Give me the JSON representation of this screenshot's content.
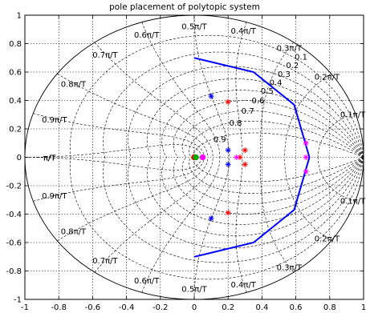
{
  "chart_data": {
    "type": "scatter",
    "title": "pole placement of polytopic system",
    "xlabel": "",
    "ylabel": "",
    "xlim": [
      -1,
      1
    ],
    "ylim": [
      -1,
      1
    ],
    "xticks": [
      "-1",
      "-0.8",
      "-0.6",
      "-0.4",
      "-0.2",
      "0",
      "0.2",
      "0.4",
      "0.6",
      "0.8",
      "1"
    ],
    "yticks": [
      "-1",
      "-0.8",
      "-0.6",
      "-0.4",
      "-0.2",
      "0",
      "0.2",
      "0.4",
      "0.6",
      "0.8",
      "1"
    ],
    "grid": "zgrid",
    "damping_labels": [
      "0.1",
      "0.2",
      "0.3",
      "0.4",
      "0.5",
      "0.6",
      "0.7",
      "0.8",
      "0.9"
    ],
    "frequency_labels": [
      "0.1π/T",
      "0.2π/T",
      "0.3π/T",
      "0.4π/T",
      "0.5π/T",
      "0.6π/T",
      "0.7π/T",
      "0.8π/T",
      "0.9π/T",
      "π/T",
      "π/T",
      "0.9π/T",
      "0.8π/T",
      "0.7π/T",
      "0.6π/T",
      "0.5π/T",
      "0.4π/T",
      "0.3π/T",
      "0.2π/T",
      "0.1π/T"
    ],
    "region": {
      "type": "arc",
      "color": "#0000ff",
      "points": [
        [
          0,
          0.7
        ],
        [
          0.35,
          0.6
        ],
        [
          0.59,
          0.37
        ],
        [
          0.68,
          0
        ],
        [
          0.59,
          -0.37
        ],
        [
          0.35,
          -0.6
        ],
        [
          0,
          -0.7
        ]
      ]
    },
    "series": [
      {
        "marker": "star",
        "color": "#0000ff",
        "points": [
          [
            0.1,
            0.43
          ],
          [
            0.2,
            0.05
          ],
          [
            0.2,
            -0.05
          ],
          [
            0.1,
            -0.43
          ]
        ]
      },
      {
        "marker": "star",
        "color": "#ff0000",
        "points": [
          [
            0.2,
            0.39
          ],
          [
            0.3,
            0.05
          ],
          [
            0.3,
            -0.05
          ],
          [
            0.2,
            -0.39
          ],
          [
            0.27,
            0
          ]
        ]
      },
      {
        "marker": "star",
        "color": "#ff00ff",
        "points": [
          [
            0.25,
            0
          ],
          [
            0.66,
            0.1
          ],
          [
            0.66,
            -0.1
          ],
          [
            0.66,
            0
          ]
        ]
      },
      {
        "marker": "dot",
        "color": "#ff00ff",
        "points": [
          [
            0.05,
            0
          ]
        ]
      },
      {
        "marker": "dot",
        "color": "#ff0000",
        "points": [
          [
            0.0,
            0
          ]
        ]
      },
      {
        "marker": "dot",
        "color": "#00aa00",
        "points": [
          [
            0.01,
            0
          ]
        ]
      }
    ]
  }
}
